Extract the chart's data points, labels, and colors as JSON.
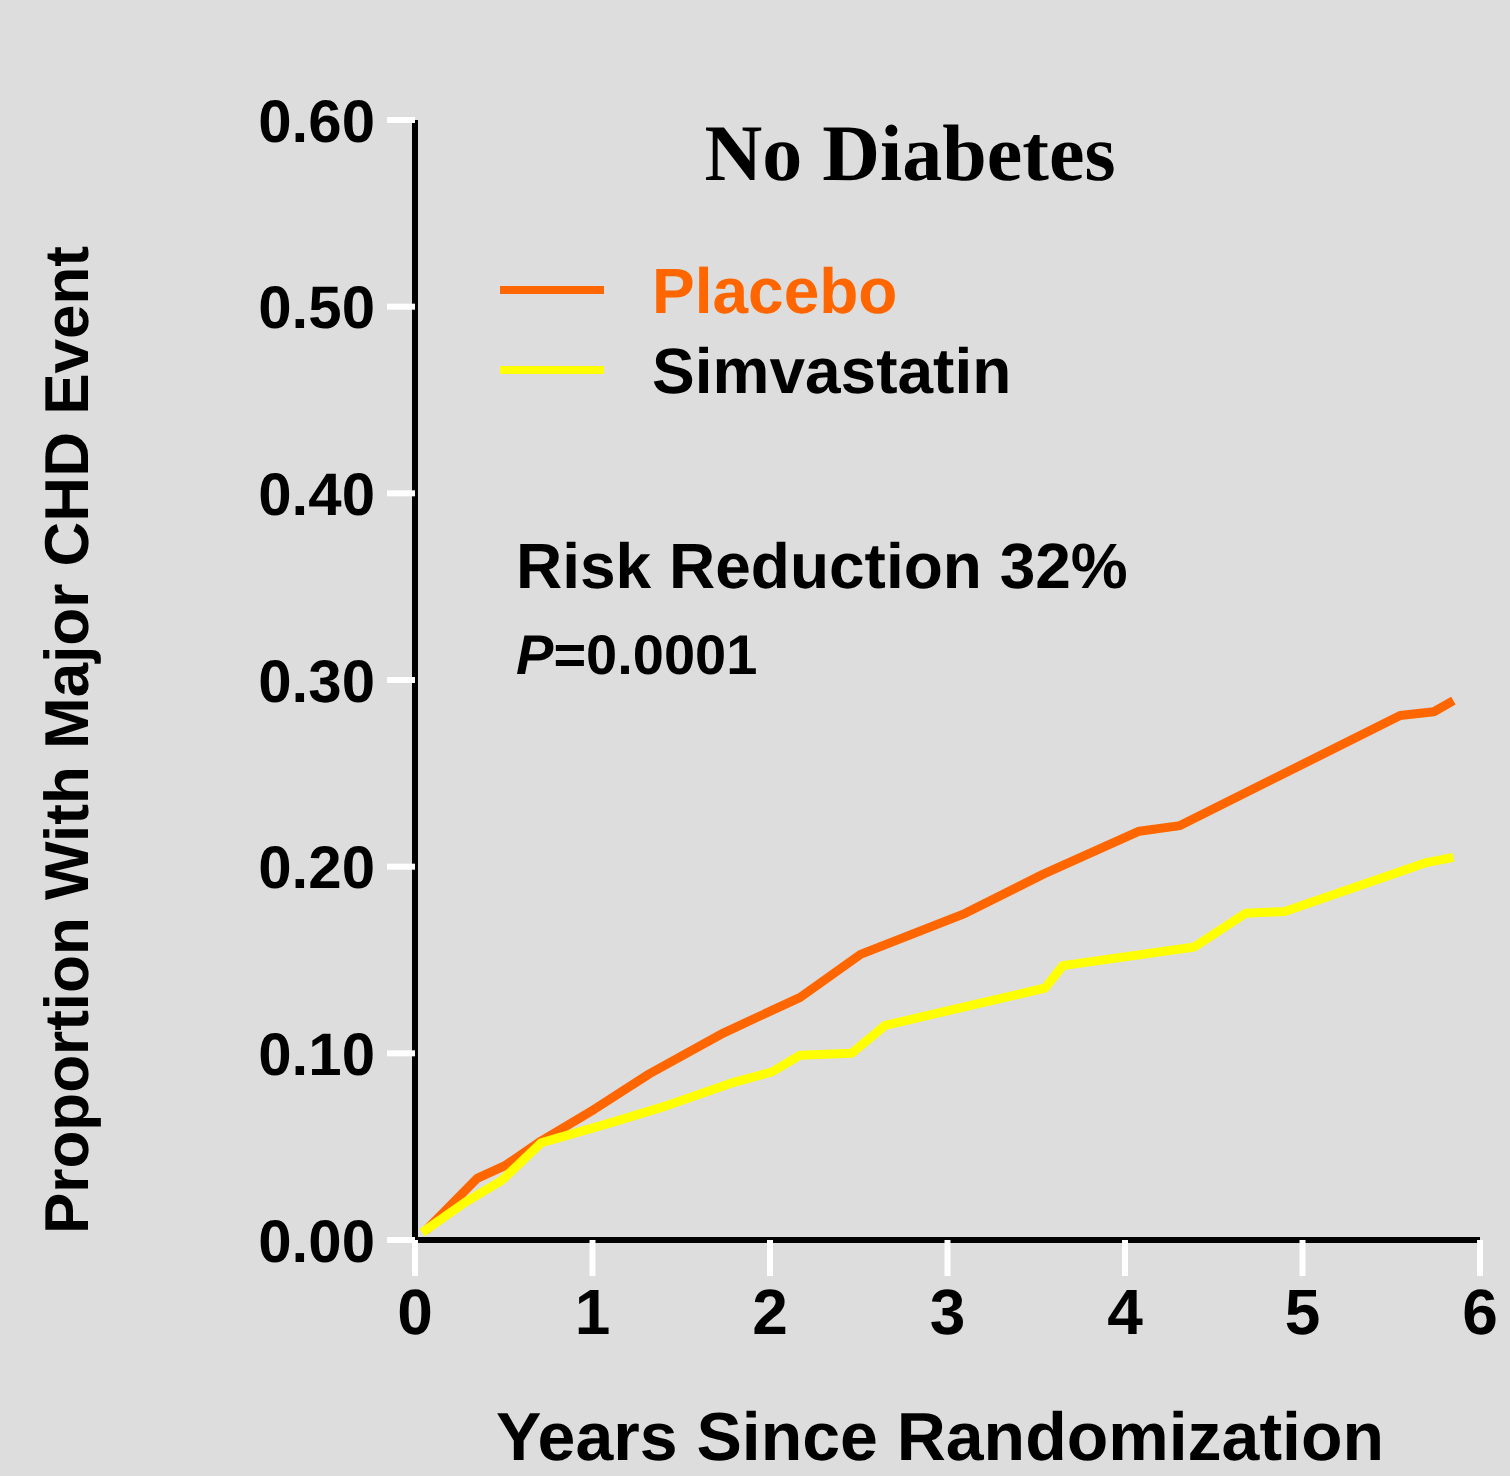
{
  "chart_data": {
    "type": "line",
    "title": "No Diabetes",
    "xlabel": "Years Since Randomization",
    "ylabel": "Proportion With Major CHD Event",
    "annotations": [
      "Risk Reduction 32%",
      "P=0.0001"
    ],
    "xlim": [
      0,
      6
    ],
    "ylim": [
      0,
      0.6
    ],
    "xticks": [
      0,
      1,
      2,
      3,
      4,
      5,
      6
    ],
    "yticks": [
      {
        "value": 0,
        "label": "0.00"
      },
      {
        "value": 0.1,
        "label": "0.10"
      },
      {
        "value": 0.2,
        "label": "0.20"
      },
      {
        "value": 0.3,
        "label": "0.30"
      },
      {
        "value": 0.4,
        "label": "0.40"
      },
      {
        "value": 0.5,
        "label": "0.50"
      },
      {
        "value": 0.6,
        "label": "0.60"
      }
    ],
    "legend": "top left",
    "grid": false,
    "marker": "none",
    "line_style": "solid",
    "series": [
      {
        "name": "Placebo",
        "color": "#ff6600",
        "x": [
          0.06,
          0.35,
          0.51,
          0.71,
          1.01,
          1.32,
          1.74,
          2.17,
          2.51,
          3.1,
          3.54,
          4.08,
          4.31,
          5.55,
          5.74,
          5.85
        ],
        "values": [
          0.005,
          0.033,
          0.04,
          0.053,
          0.07,
          0.089,
          0.111,
          0.13,
          0.153,
          0.175,
          0.196,
          0.219,
          0.222,
          0.281,
          0.283,
          0.289
        ]
      },
      {
        "name": "Simvastatin",
        "color": "#ffff00",
        "x": [
          0.04,
          0.28,
          0.49,
          0.71,
          1.11,
          1.42,
          1.78,
          2.01,
          2.17,
          2.46,
          2.65,
          3.55,
          3.65,
          4.39,
          4.68,
          4.9,
          5.69,
          5.85
        ],
        "values": [
          0.004,
          0.02,
          0.032,
          0.052,
          0.063,
          0.072,
          0.084,
          0.09,
          0.099,
          0.1,
          0.115,
          0.135,
          0.147,
          0.157,
          0.175,
          0.176,
          0.202,
          0.205
        ]
      }
    ]
  }
}
